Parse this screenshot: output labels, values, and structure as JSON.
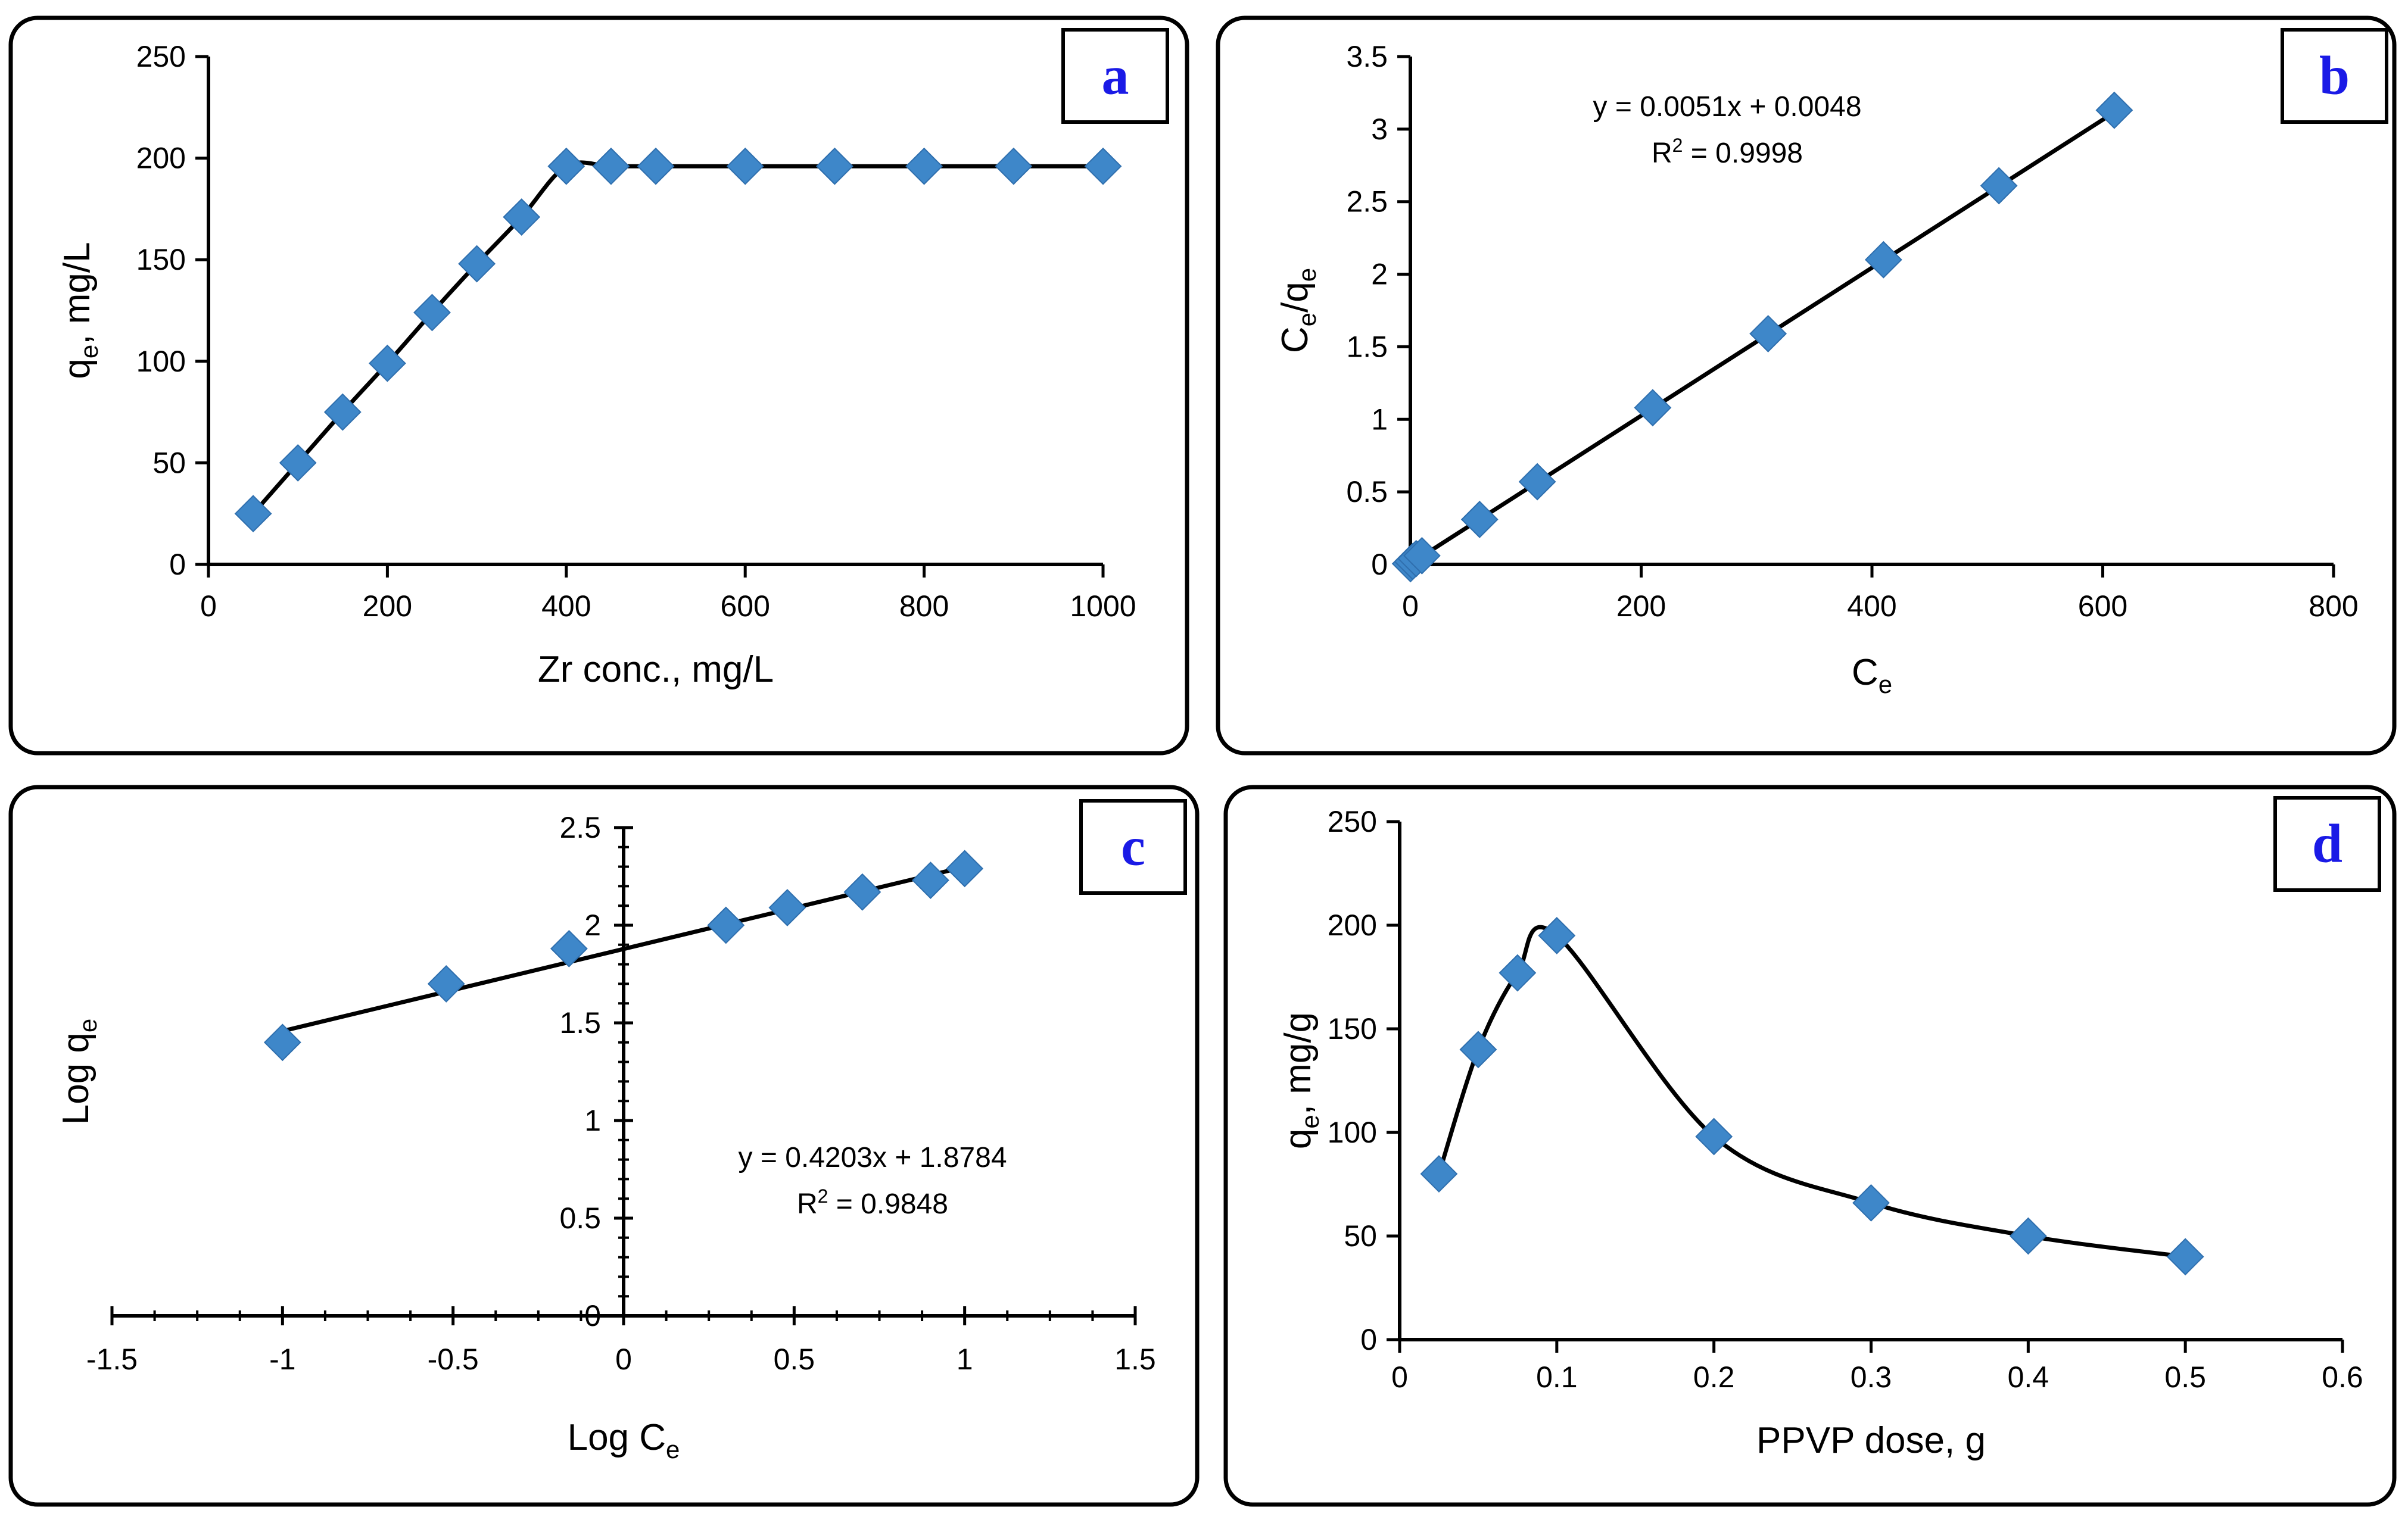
{
  "chart_data": [
    {
      "id": "a",
      "panel_label": "a",
      "type": "line",
      "xlabel": "Zr conc., mg/L",
      "ylabel": "q",
      "ylabel_sub": "e",
      "ylabel_suffix": ", mg/L",
      "xlim": [
        0,
        1000
      ],
      "ylim": [
        0,
        250
      ],
      "xticks": [
        0,
        200,
        400,
        600,
        800,
        1000
      ],
      "yticks": [
        0,
        50,
        100,
        150,
        200,
        250
      ],
      "xtick_labels": [
        "0",
        "200",
        "400",
        "600",
        "800",
        "1000"
      ],
      "ytick_labels": [
        "0",
        "50",
        "100",
        "150",
        "200",
        "250"
      ],
      "x": [
        50,
        100,
        150,
        200,
        250,
        300,
        350,
        400,
        450,
        500,
        600,
        700,
        800,
        900,
        1000
      ],
      "y": [
        25,
        50,
        75,
        99,
        124,
        148,
        171,
        196,
        196,
        196,
        196,
        196,
        196,
        196,
        196
      ],
      "curve": "smooth"
    },
    {
      "id": "b",
      "panel_label": "b",
      "type": "scatter",
      "xlabel": "C",
      "xlabel_sub": "e",
      "ylabel": "C",
      "ylabel_sub": "e",
      "ylabel_suffix": "/q",
      "ylabel_sub2": "e",
      "xlim": [
        0,
        800
      ],
      "ylim": [
        0,
        3.5
      ],
      "xticks": [
        0,
        200,
        400,
        600,
        800
      ],
      "yticks": [
        0,
        0.5,
        1,
        1.5,
        2,
        2.5,
        3,
        3.5
      ],
      "xtick_labels": [
        "0",
        "200",
        "400",
        "600",
        "800"
      ],
      "ytick_labels": [
        "0",
        "0.5",
        "1",
        "1.5",
        "2",
        "2.5",
        "3",
        "3.5"
      ],
      "x": [
        0.1,
        2,
        5,
        10,
        60,
        110,
        210,
        310,
        410,
        510,
        610
      ],
      "y": [
        0.005,
        0.02,
        0.04,
        0.06,
        0.31,
        0.57,
        1.08,
        1.59,
        2.1,
        2.61,
        3.13
      ],
      "trendline": {
        "slope": 0.0051,
        "intercept": 0.0048,
        "x_range": [
          0,
          610
        ]
      },
      "equation": "y = 0.0051x + 0.0048",
      "r2_prefix": "R",
      "r2_sup": "2",
      "r2_value": " = 0.9998"
    },
    {
      "id": "c",
      "panel_label": "c",
      "type": "scatter",
      "xlabel": "Log C",
      "xlabel_sub": "e",
      "ylabel": "Log q",
      "ylabel_sub": "e",
      "xlim": [
        -1.5,
        1.5
      ],
      "ylim": [
        0,
        2.5
      ],
      "xticks": [
        -1.5,
        -1,
        -0.5,
        0,
        0.5,
        1,
        1.5
      ],
      "yticks": [
        0,
        0.5,
        1,
        1.5,
        2,
        2.5
      ],
      "xtick_labels": [
        "-1.5",
        "-1",
        "-0.5",
        "0",
        "0.5",
        "1",
        "1.5"
      ],
      "ytick_labels": [
        "0",
        "0.5",
        "1",
        "1.5",
        "2",
        "2.5"
      ],
      "x": [
        -1,
        -0.52,
        -0.16,
        0.3,
        0.48,
        0.7,
        0.9,
        1.0
      ],
      "y": [
        1.4,
        1.7,
        1.88,
        2.0,
        2.09,
        2.17,
        2.23,
        2.29
      ],
      "trendline": {
        "slope": 0.4203,
        "intercept": 1.8784,
        "x_range": [
          -1,
          1
        ]
      },
      "equation": "y = 0.4203x + 1.8784",
      "r2_prefix": "R",
      "r2_sup": "2",
      "r2_value": " = 0.9848"
    },
    {
      "id": "d",
      "panel_label": "d",
      "type": "line",
      "xlabel": "PPVP dose, g",
      "ylabel": "q",
      "ylabel_sub": "e",
      "ylabel_suffix": ", mg/g",
      "xlim": [
        0,
        0.6
      ],
      "ylim": [
        0,
        250
      ],
      "xticks": [
        0,
        0.1,
        0.2,
        0.3,
        0.4,
        0.5,
        0.6
      ],
      "yticks": [
        0,
        50,
        100,
        150,
        200,
        250
      ],
      "xtick_labels": [
        "0",
        "0.1",
        "0.2",
        "0.3",
        "0.4",
        "0.5",
        "0.6"
      ],
      "ytick_labels": [
        "0",
        "50",
        "100",
        "150",
        "200",
        "250"
      ],
      "x": [
        0.025,
        0.05,
        0.075,
        0.1,
        0.2,
        0.3,
        0.4,
        0.5
      ],
      "y": [
        80,
        140,
        177,
        195,
        98,
        66,
        50,
        40
      ],
      "curve": "smooth"
    }
  ]
}
